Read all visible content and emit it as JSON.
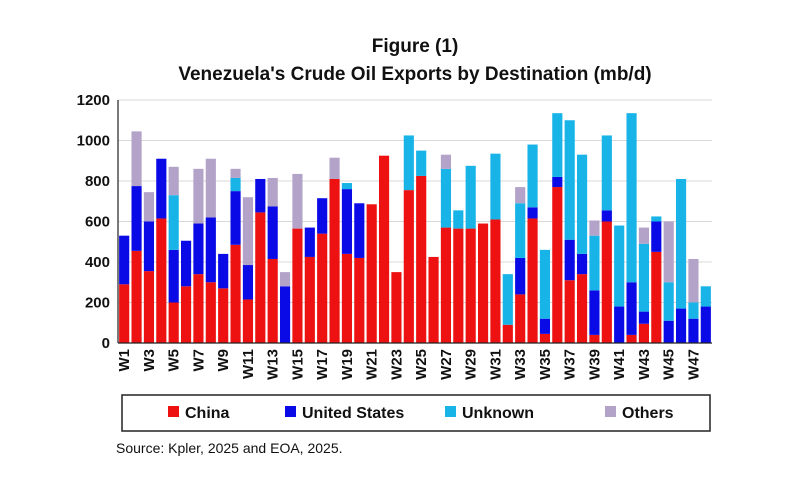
{
  "chart_data": {
    "type": "bar",
    "stacked": true,
    "title_line1": "Figure (1)",
    "title_line2": "Venezuela's Crude Oil Exports by Destination (mb/d)",
    "source": "Source: Kpler, 2025 and EOA, 2025.",
    "ylim": [
      0,
      1200
    ],
    "yticks": [
      0,
      200,
      400,
      600,
      800,
      1000,
      1200
    ],
    "categories": [
      "W1",
      "W2",
      "W3",
      "W4",
      "W5",
      "W6",
      "W7",
      "W8",
      "W9",
      "W10",
      "W11",
      "W12",
      "W13",
      "W14",
      "W15",
      "W16",
      "W17",
      "W18",
      "W19",
      "W20",
      "W21",
      "W22",
      "W23",
      "W24",
      "W25",
      "W26",
      "W27",
      "W28",
      "W29",
      "W30",
      "W31",
      "W32",
      "W33",
      "W34",
      "W35",
      "W36",
      "W37",
      "W38",
      "W39",
      "W40",
      "W41",
      "W42",
      "W43",
      "W44",
      "W45",
      "W46",
      "W47",
      "W48"
    ],
    "shown_labels": [
      "W1",
      "W3",
      "W5",
      "W7",
      "W9",
      "W11",
      "W13",
      "W15",
      "W17",
      "W19",
      "W21",
      "W23",
      "W25",
      "W27",
      "W29",
      "W31",
      "W33",
      "W35",
      "W37",
      "W39",
      "W41",
      "W43",
      "W45",
      "W47"
    ],
    "legend_position": "bottom",
    "colors": {
      "China": "#ee1111",
      "United States": "#0a0ae6",
      "Unknown": "#18b4e8",
      "Others": "#b3a3c8"
    },
    "series": [
      {
        "name": "China",
        "values": [
          290,
          455,
          355,
          615,
          200,
          280,
          340,
          300,
          270,
          485,
          215,
          645,
          415,
          0,
          565,
          425,
          540,
          810,
          440,
          420,
          685,
          925,
          350,
          755,
          825,
          425,
          570,
          565,
          565,
          590,
          610,
          90,
          240,
          615,
          45,
          770,
          310,
          340,
          40,
          600,
          0,
          40,
          95,
          450,
          0,
          0,
          0,
          0
        ]
      },
      {
        "name": "United States",
        "values": [
          240,
          320,
          245,
          295,
          260,
          225,
          250,
          320,
          170,
          265,
          170,
          165,
          260,
          280,
          0,
          145,
          175,
          0,
          320,
          270,
          0,
          0,
          0,
          0,
          0,
          0,
          0,
          0,
          0,
          0,
          0,
          0,
          180,
          55,
          75,
          50,
          200,
          100,
          220,
          55,
          180,
          260,
          60,
          150,
          110,
          170,
          120,
          180
        ]
      },
      {
        "name": "Unknown",
        "values": [
          0,
          0,
          0,
          0,
          270,
          0,
          0,
          0,
          0,
          65,
          0,
          0,
          0,
          0,
          0,
          0,
          0,
          0,
          30,
          0,
          0,
          0,
          0,
          270,
          125,
          0,
          290,
          90,
          310,
          0,
          325,
          250,
          270,
          310,
          340,
          315,
          590,
          490,
          270,
          370,
          400,
          835,
          335,
          25,
          190,
          640,
          80,
          100
        ]
      },
      {
        "name": "Others",
        "values": [
          0,
          270,
          145,
          0,
          140,
          0,
          270,
          290,
          0,
          45,
          335,
          0,
          140,
          70,
          270,
          0,
          0,
          105,
          0,
          0,
          0,
          0,
          0,
          0,
          0,
          0,
          70,
          0,
          0,
          0,
          0,
          0,
          80,
          0,
          0,
          0,
          0,
          0,
          75,
          0,
          0,
          0,
          80,
          0,
          300,
          0,
          215,
          0
        ]
      }
    ]
  }
}
